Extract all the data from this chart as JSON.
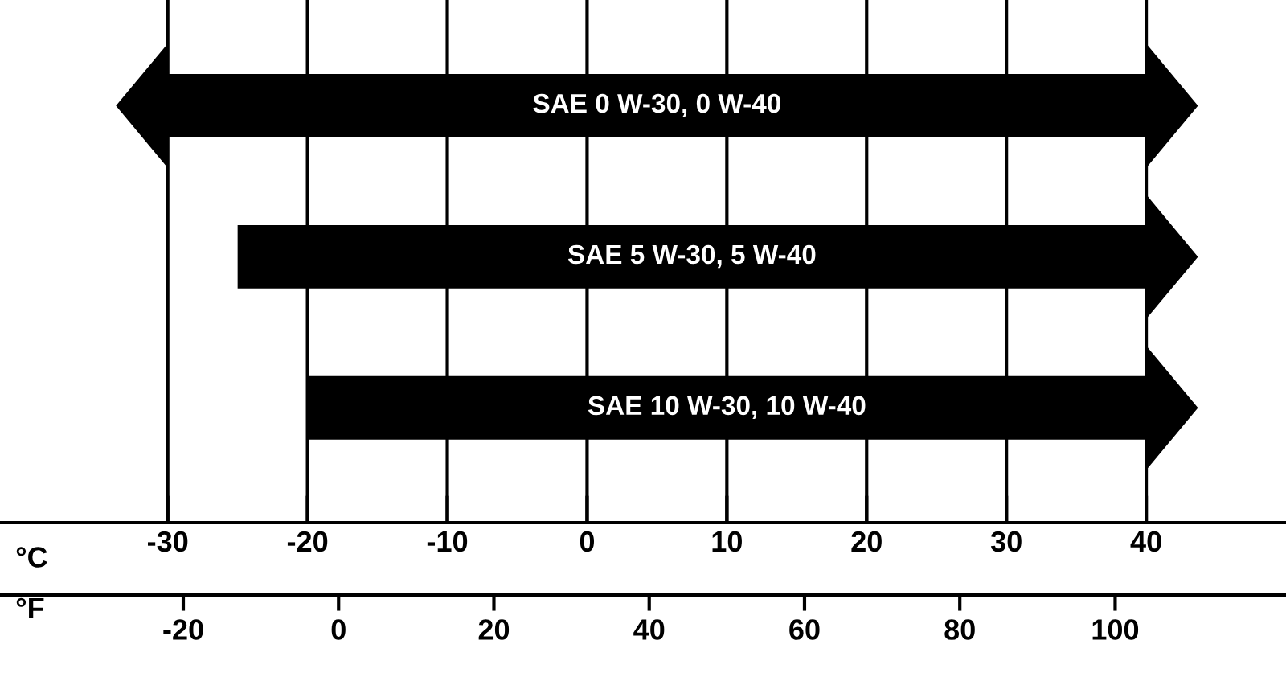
{
  "chart_data": {
    "type": "bar",
    "orientation": "horizontal",
    "categories": [
      "SAE 0 W-30, 0 W-40",
      "SAE 5 W-30, 5 W-40",
      "SAE 10 W-30, 10 W-40"
    ],
    "base": [
      -30,
      -25,
      -20
    ],
    "values": [
      70,
      65,
      60
    ],
    "color": "#000000",
    "xlabel": "°C",
    "x2label": "°F",
    "xlim": [
      -42,
      50
    ],
    "xticks": [
      -30,
      -20,
      -10,
      0,
      10,
      20,
      30,
      40
    ],
    "x2lim": [
      -43.6,
      122
    ],
    "x2ticks": [
      -20,
      0,
      20,
      40,
      60,
      80,
      100
    ],
    "grid": "x",
    "tick_labels": "x"
  }
}
